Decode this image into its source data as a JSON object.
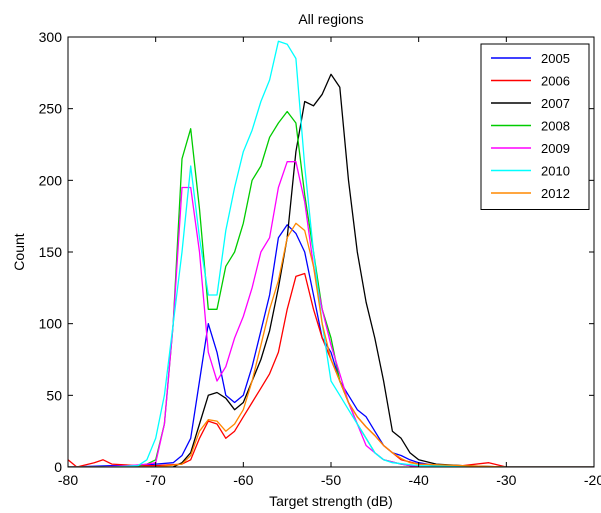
{
  "chart_data": {
    "type": "line",
    "title": "All regions",
    "xlabel": "Target strength (dB)",
    "ylabel": "Count",
    "xlim": [
      -80,
      -20
    ],
    "ylim": [
      0,
      300
    ],
    "xticks": [
      -80,
      -70,
      -60,
      -50,
      -40,
      -30,
      -20
    ],
    "yticks": [
      0,
      50,
      100,
      150,
      200,
      250,
      300
    ],
    "xtick_labels": [
      "-80",
      "-70",
      "-60",
      "-50",
      "-40",
      "-30",
      "-20"
    ],
    "ytick_labels": [
      "0",
      "50",
      "100",
      "150",
      "200",
      "250",
      "300"
    ],
    "grid": false,
    "legend_position": "top-right",
    "series": [
      {
        "name": "2005",
        "color": "#0000ff",
        "points": [
          [
            -80,
            0
          ],
          [
            -75,
            1
          ],
          [
            -72,
            1
          ],
          [
            -70,
            2
          ],
          [
            -68,
            3
          ],
          [
            -67,
            8
          ],
          [
            -66,
            20
          ],
          [
            -65,
            60
          ],
          [
            -64,
            100
          ],
          [
            -63,
            80
          ],
          [
            -62,
            50
          ],
          [
            -61,
            45
          ],
          [
            -60,
            50
          ],
          [
            -59,
            70
          ],
          [
            -58,
            95
          ],
          [
            -57,
            120
          ],
          [
            -56,
            160
          ],
          [
            -55,
            169
          ],
          [
            -54,
            163
          ],
          [
            -53,
            150
          ],
          [
            -52,
            120
          ],
          [
            -51,
            90
          ],
          [
            -50,
            80
          ],
          [
            -49,
            60
          ],
          [
            -48,
            50
          ],
          [
            -47,
            40
          ],
          [
            -46,
            35
          ],
          [
            -45,
            25
          ],
          [
            -44,
            15
          ],
          [
            -43,
            10
          ],
          [
            -42,
            8
          ],
          [
            -41,
            5
          ],
          [
            -40,
            3
          ],
          [
            -38,
            1
          ],
          [
            -35,
            0
          ],
          [
            -30,
            0
          ],
          [
            -20,
            0
          ]
        ]
      },
      {
        "name": "2006",
        "color": "#ff0000",
        "points": [
          [
            -80,
            5
          ],
          [
            -79,
            0
          ],
          [
            -77,
            3
          ],
          [
            -76,
            5
          ],
          [
            -75,
            2
          ],
          [
            -72,
            1
          ],
          [
            -70,
            1
          ],
          [
            -67,
            2
          ],
          [
            -66,
            5
          ],
          [
            -65,
            20
          ],
          [
            -64,
            32
          ],
          [
            -63,
            30
          ],
          [
            -62,
            20
          ],
          [
            -61,
            25
          ],
          [
            -60,
            35
          ],
          [
            -59,
            45
          ],
          [
            -58,
            55
          ],
          [
            -57,
            65
          ],
          [
            -56,
            80
          ],
          [
            -55,
            110
          ],
          [
            -54,
            133
          ],
          [
            -53,
            135
          ],
          [
            -52,
            110
          ],
          [
            -51,
            90
          ],
          [
            -50,
            75
          ],
          [
            -49,
            60
          ],
          [
            -48,
            45
          ],
          [
            -47,
            35
          ],
          [
            -46,
            28
          ],
          [
            -45,
            22
          ],
          [
            -44,
            15
          ],
          [
            -43,
            10
          ],
          [
            -42,
            5
          ],
          [
            -40,
            2
          ],
          [
            -35,
            1
          ],
          [
            -32,
            3
          ],
          [
            -30,
            0
          ],
          [
            -20,
            0
          ]
        ]
      },
      {
        "name": "2007",
        "color": "#000000",
        "points": [
          [
            -80,
            0
          ],
          [
            -75,
            0
          ],
          [
            -70,
            0
          ],
          [
            -68,
            0
          ],
          [
            -67,
            3
          ],
          [
            -66,
            10
          ],
          [
            -65,
            30
          ],
          [
            -64,
            50
          ],
          [
            -63,
            52
          ],
          [
            -62,
            48
          ],
          [
            -61,
            40
          ],
          [
            -60,
            45
          ],
          [
            -59,
            60
          ],
          [
            -58,
            75
          ],
          [
            -57,
            95
          ],
          [
            -56,
            125
          ],
          [
            -55,
            160
          ],
          [
            -54,
            220
          ],
          [
            -53,
            255
          ],
          [
            -52,
            252
          ],
          [
            -51,
            260
          ],
          [
            -50,
            274
          ],
          [
            -49,
            265
          ],
          [
            -48,
            200
          ],
          [
            -47,
            150
          ],
          [
            -46,
            115
          ],
          [
            -45,
            90
          ],
          [
            -44,
            60
          ],
          [
            -43,
            25
          ],
          [
            -42,
            20
          ],
          [
            -41,
            10
          ],
          [
            -40,
            5
          ],
          [
            -38,
            2
          ],
          [
            -35,
            1
          ],
          [
            -30,
            0
          ],
          [
            -20,
            0
          ]
        ]
      },
      {
        "name": "2008",
        "color": "#00cc00",
        "points": [
          [
            -80,
            0
          ],
          [
            -75,
            0
          ],
          [
            -72,
            1
          ],
          [
            -71,
            2
          ],
          [
            -70,
            5
          ],
          [
            -69,
            30
          ],
          [
            -68,
            100
          ],
          [
            -67,
            215
          ],
          [
            -66,
            236
          ],
          [
            -65,
            180
          ],
          [
            -64,
            110
          ],
          [
            -63,
            110
          ],
          [
            -62,
            140
          ],
          [
            -61,
            150
          ],
          [
            -60,
            170
          ],
          [
            -59,
            200
          ],
          [
            -58,
            210
          ],
          [
            -57,
            230
          ],
          [
            -56,
            240
          ],
          [
            -55,
            248
          ],
          [
            -54,
            240
          ],
          [
            -53,
            190
          ],
          [
            -52,
            150
          ],
          [
            -51,
            110
          ],
          [
            -50,
            90
          ],
          [
            -49,
            60
          ],
          [
            -48,
            45
          ],
          [
            -47,
            30
          ],
          [
            -46,
            20
          ],
          [
            -45,
            10
          ],
          [
            -44,
            5
          ],
          [
            -42,
            2
          ],
          [
            -40,
            0
          ],
          [
            -30,
            0
          ],
          [
            -20,
            0
          ]
        ]
      },
      {
        "name": "2009",
        "color": "#ff00ff",
        "points": [
          [
            -80,
            0
          ],
          [
            -76,
            0
          ],
          [
            -73,
            1
          ],
          [
            -71,
            2
          ],
          [
            -70,
            3
          ],
          [
            -69,
            30
          ],
          [
            -68,
            100
          ],
          [
            -67,
            195
          ],
          [
            -66,
            195
          ],
          [
            -65,
            150
          ],
          [
            -64,
            80
          ],
          [
            -63,
            60
          ],
          [
            -62,
            70
          ],
          [
            -61,
            90
          ],
          [
            -60,
            105
          ],
          [
            -59,
            125
          ],
          [
            -58,
            150
          ],
          [
            -57,
            160
          ],
          [
            -56,
            195
          ],
          [
            -55,
            213
          ],
          [
            -54,
            213
          ],
          [
            -53,
            185
          ],
          [
            -52,
            140
          ],
          [
            -51,
            110
          ],
          [
            -50,
            85
          ],
          [
            -49,
            65
          ],
          [
            -48,
            45
          ],
          [
            -47,
            30
          ],
          [
            -46,
            15
          ],
          [
            -45,
            10
          ],
          [
            -44,
            5
          ],
          [
            -42,
            2
          ],
          [
            -40,
            0
          ],
          [
            -30,
            0
          ],
          [
            -20,
            0
          ]
        ]
      },
      {
        "name": "2010",
        "color": "#00ffff",
        "points": [
          [
            -80,
            0
          ],
          [
            -75,
            0
          ],
          [
            -72,
            1
          ],
          [
            -71,
            5
          ],
          [
            -70,
            20
          ],
          [
            -69,
            50
          ],
          [
            -68,
            100
          ],
          [
            -67,
            150
          ],
          [
            -66,
            210
          ],
          [
            -65,
            160
          ],
          [
            -64,
            120
          ],
          [
            -63,
            120
          ],
          [
            -62,
            165
          ],
          [
            -61,
            195
          ],
          [
            -60,
            220
          ],
          [
            -59,
            235
          ],
          [
            -58,
            255
          ],
          [
            -57,
            270
          ],
          [
            -56,
            297
          ],
          [
            -55,
            295
          ],
          [
            -54,
            285
          ],
          [
            -53,
            210
          ],
          [
            -52,
            150
          ],
          [
            -51,
            100
          ],
          [
            -50,
            60
          ],
          [
            -49,
            50
          ],
          [
            -48,
            40
          ],
          [
            -47,
            30
          ],
          [
            -46,
            20
          ],
          [
            -45,
            10
          ],
          [
            -44,
            5
          ],
          [
            -43,
            3
          ],
          [
            -40,
            1
          ],
          [
            -30,
            0
          ],
          [
            -20,
            0
          ]
        ]
      },
      {
        "name": "2012",
        "color": "#ff8800",
        "points": [
          [
            -80,
            0
          ],
          [
            -75,
            0
          ],
          [
            -70,
            0
          ],
          [
            -67,
            2
          ],
          [
            -66,
            8
          ],
          [
            -65,
            25
          ],
          [
            -64,
            33
          ],
          [
            -63,
            32
          ],
          [
            -62,
            25
          ],
          [
            -61,
            30
          ],
          [
            -60,
            40
          ],
          [
            -59,
            60
          ],
          [
            -58,
            85
          ],
          [
            -57,
            110
          ],
          [
            -56,
            130
          ],
          [
            -55,
            160
          ],
          [
            -54,
            170
          ],
          [
            -53,
            165
          ],
          [
            -52,
            140
          ],
          [
            -51,
            100
          ],
          [
            -50,
            75
          ],
          [
            -49,
            60
          ],
          [
            -48,
            45
          ],
          [
            -47,
            35
          ],
          [
            -46,
            28
          ],
          [
            -45,
            22
          ],
          [
            -44,
            15
          ],
          [
            -43,
            10
          ],
          [
            -42,
            6
          ],
          [
            -41,
            3
          ],
          [
            -40,
            2
          ],
          [
            -35,
            1
          ],
          [
            -30,
            0
          ],
          [
            -20,
            0
          ]
        ]
      }
    ]
  }
}
